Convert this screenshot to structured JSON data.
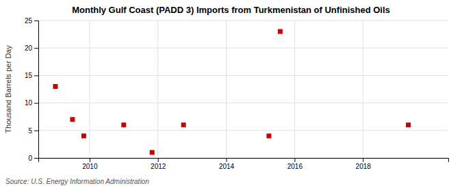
{
  "chart_data": {
    "type": "scatter",
    "title": "Monthly Gulf Coast (PADD 3) Imports from Turkmenistan of Unfinished Oils",
    "y_label": "Thousand Barrels per Day",
    "source": "Source: U.S. Energy Information Administration",
    "x": [
      2009.0,
      2009.5,
      2009.83,
      2011.0,
      2011.83,
      2012.75,
      2015.25,
      2015.58,
      2019.33
    ],
    "values": [
      13,
      7,
      4,
      6,
      1,
      6,
      4,
      23,
      6
    ],
    "color": "#cc0000",
    "marker": "square",
    "xlim": [
      2008.5,
      2020.5
    ],
    "ylim": [
      0,
      25
    ],
    "xticks": [
      2010,
      2012,
      2014,
      2016,
      2018
    ],
    "yticks": [
      0,
      5,
      10,
      15,
      20,
      25
    ],
    "grid": true
  }
}
